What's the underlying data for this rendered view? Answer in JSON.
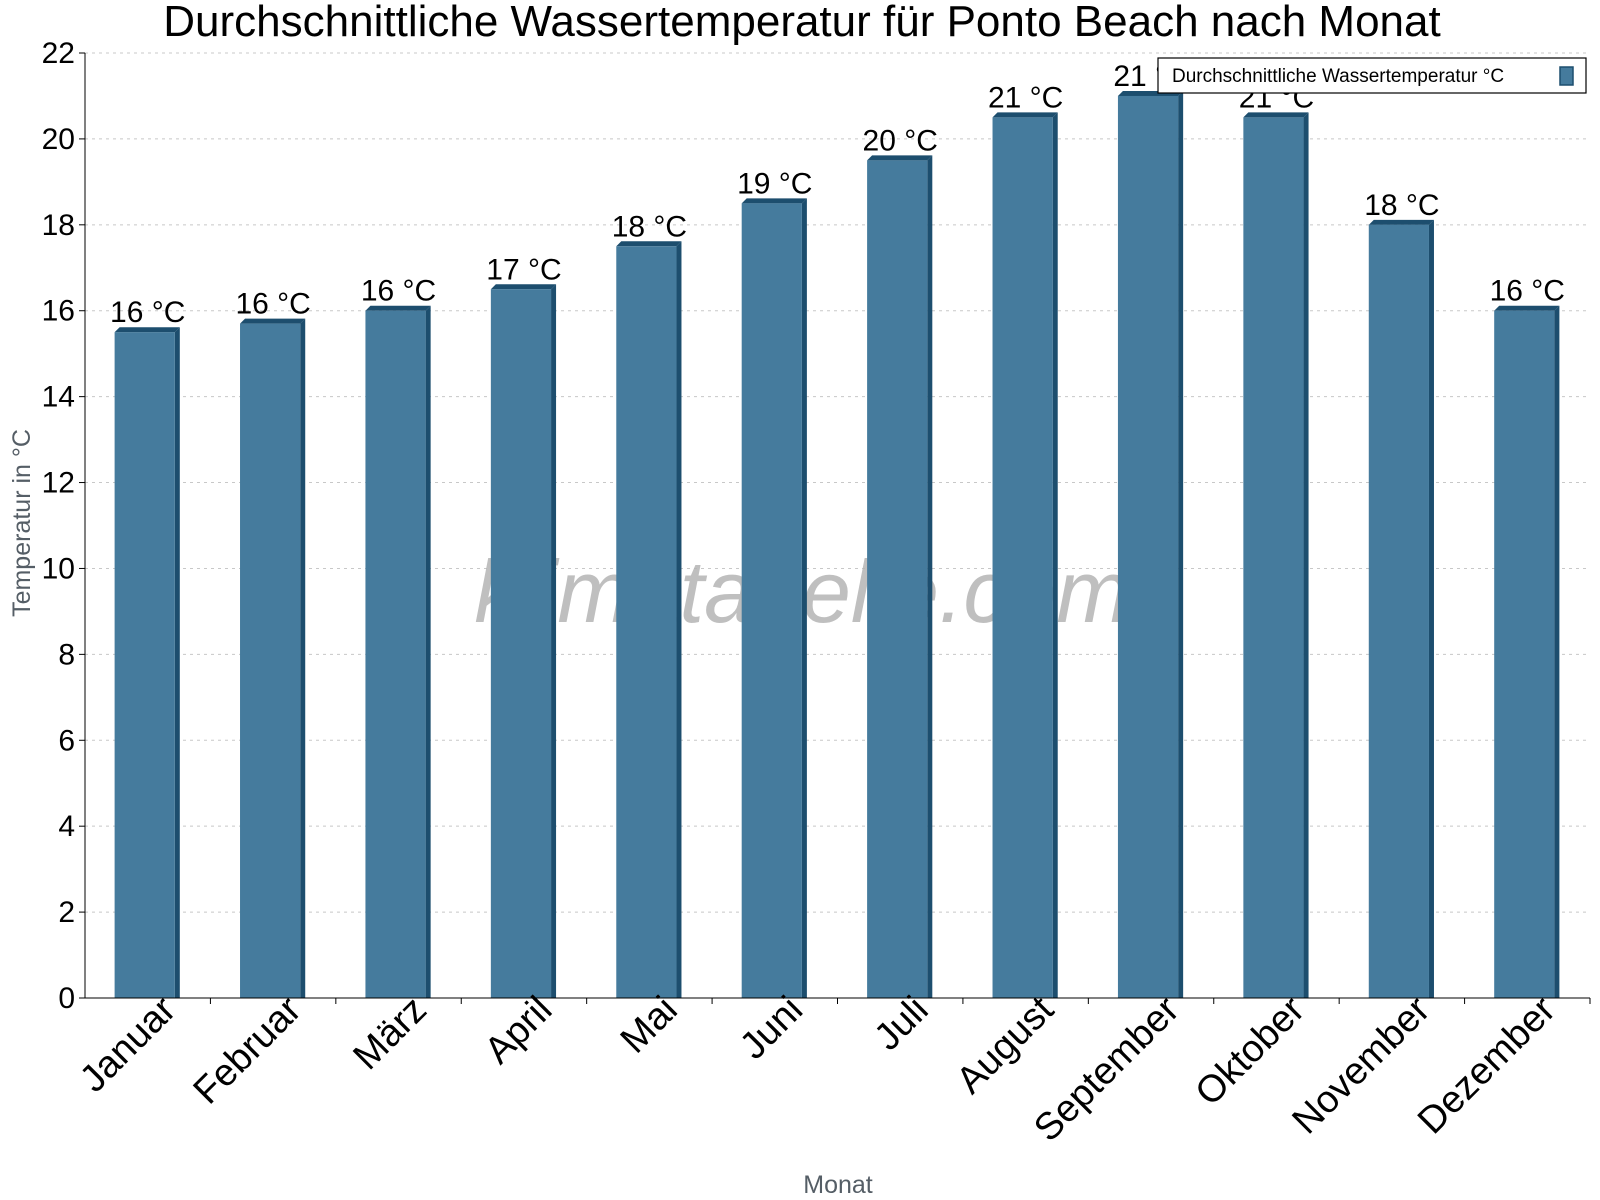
{
  "watermark": "klimatabelle.com",
  "colors": {
    "bar_face": "#457b9d",
    "bar_side": "#1d4e6e",
    "bar_top": "#2e5f80",
    "grid": "#c8c8c8"
  },
  "chart_data": {
    "type": "bar",
    "title": "Durchschnittliche Wassertemperatur für Ponto Beach nach Monat",
    "xlabel": "Monat",
    "ylabel": "Temperatur in °C",
    "ylim": [
      0,
      22
    ],
    "yticks": [
      0,
      2,
      4,
      6,
      8,
      10,
      12,
      14,
      16,
      18,
      20,
      22
    ],
    "grid": true,
    "legend_position": "top-right",
    "categories": [
      "Januar",
      "Februar",
      "März",
      "April",
      "Mai",
      "Juni",
      "Juli",
      "August",
      "September",
      "Oktober",
      "November",
      "Dezember"
    ],
    "series": [
      {
        "name": "Durchschnittliche Wassertemperatur °C",
        "values": [
          15.5,
          15.7,
          16,
          16.5,
          17.5,
          18.5,
          19.5,
          20.5,
          21,
          20.5,
          18,
          16
        ],
        "data_labels": [
          "16 °C",
          "16 °C",
          "16 °C",
          "17 °C",
          "18 °C",
          "19 °C",
          "20 °C",
          "21 °C",
          "21 °C",
          "21 °C",
          "18 °C",
          "16 °C"
        ]
      }
    ]
  }
}
